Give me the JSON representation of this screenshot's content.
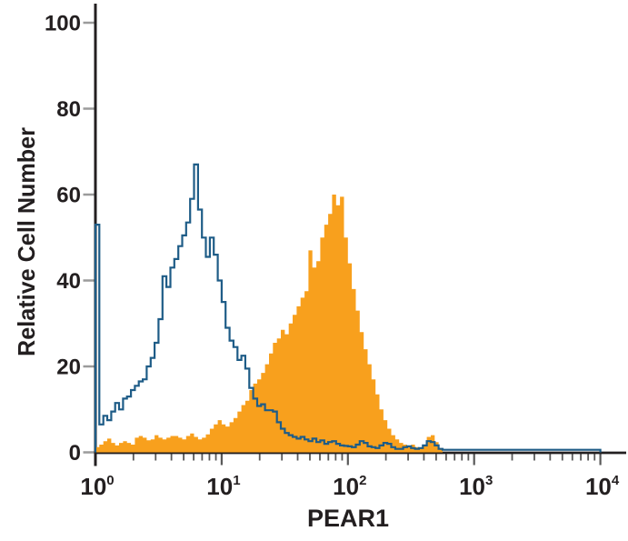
{
  "figure": {
    "kind": "flow-cytometry-overlay-histogram",
    "background_color": "#ffffff"
  },
  "chart_data": {
    "type": "histogram",
    "title": "",
    "xlabel": "PEAR1",
    "ylabel": "Relative Cell Number",
    "x_scale": "log10",
    "x_decade_min": 0,
    "x_decade_max": 4,
    "x_tick_base": "10",
    "x_tick_exponents": [
      "0",
      "1",
      "2",
      "3",
      "4"
    ],
    "x_minor_tick_multipliers": [
      2,
      3,
      4,
      5,
      6,
      7,
      8,
      9
    ],
    "y_ticks": [
      0,
      20,
      40,
      60,
      80,
      100
    ],
    "ylim": [
      0,
      100
    ],
    "grid": false,
    "legend": "none",
    "bins_per_decade": 32,
    "n_bins": 128,
    "colors": {
      "open_line": "#1E5C87",
      "filled_fill": "#F8A01D",
      "axis": "#231F20",
      "y_tick": "#9B9B9B",
      "x_tick": "#595959",
      "text": "#231F20"
    },
    "series": [
      {
        "name": "open-control-histogram",
        "style": "open-outline",
        "color": "#1E5C87",
        "bins": [
          53,
          6.5,
          8.5,
          7.5,
          9.5,
          11.5,
          10,
          12.5,
          13,
          14.5,
          15.5,
          16.5,
          17,
          20,
          22,
          25.5,
          31,
          41,
          38.5,
          43,
          45,
          48,
          50.5,
          53.5,
          59,
          67,
          56.5,
          50,
          45.5,
          50,
          46,
          40,
          35,
          29,
          26,
          24.5,
          21.5,
          22.5,
          19.5,
          15,
          12.5,
          10.8,
          11.2,
          9.8,
          9.8,
          9.5,
          7,
          5.5,
          4.5,
          4,
          3.6,
          3.2,
          3.6,
          3,
          2.6,
          3.2,
          2.4,
          2.8,
          2,
          2.4,
          2.6,
          2,
          1.6,
          1.5,
          1.4,
          1.2,
          1.8,
          2.6,
          2.2,
          1.4,
          1.2,
          1,
          1.6,
          2.2,
          2,
          1.2,
          0.8,
          0.8,
          1.2,
          1.4,
          1,
          0.8,
          1,
          1.6,
          2.6,
          2.4,
          1.6,
          0.8,
          0.6,
          0.6,
          0.6,
          0.6,
          0.6,
          0.6,
          0.6,
          0.6,
          0.6,
          0.6,
          0.6,
          0.6,
          0.6,
          0.6,
          0.6,
          0.6,
          0.6,
          0.6,
          0.6,
          0.6,
          0.6,
          0.6,
          0.6,
          0.6,
          0.6,
          0.6,
          0.6,
          0.6,
          0.6,
          0.6,
          0.6,
          0.6,
          0.6,
          0.6,
          0.6,
          0.6,
          0.6,
          0.6,
          0.6,
          0.6
        ]
      },
      {
        "name": "filled-stained-histogram",
        "style": "filled",
        "color": "#F8A01D",
        "bins": [
          1.2,
          1.8,
          2.6,
          3.2,
          2.2,
          1.6,
          2.2,
          2.6,
          2.2,
          1.8,
          3.4,
          3.8,
          3.4,
          2.8,
          3,
          4,
          3.4,
          3,
          3.4,
          3.8,
          3.8,
          3.4,
          3,
          3.8,
          4.4,
          3.6,
          3,
          3.4,
          4.2,
          5.5,
          6.5,
          7.5,
          6.5,
          6,
          7,
          8,
          9.5,
          11,
          12,
          14.5,
          16,
          17,
          18.5,
          20.5,
          23,
          25.5,
          26.5,
          28.5,
          27.5,
          30,
          32,
          34,
          36,
          37.5,
          47,
          43,
          44.5,
          50,
          53,
          55.5,
          60,
          57.5,
          59.5,
          50,
          44,
          38,
          33,
          28,
          24,
          20.5,
          17,
          13.5,
          10,
          7.5,
          5.5,
          4,
          3,
          2.2,
          1.8,
          1.4,
          1.8,
          1.2,
          1,
          1.4,
          3.6,
          4,
          2.4,
          1,
          0,
          0,
          0,
          0,
          0,
          0,
          0,
          0,
          0,
          0,
          0,
          0,
          0,
          0,
          0,
          0,
          0,
          0,
          0,
          0,
          0,
          0,
          0,
          0,
          0,
          0,
          0,
          0,
          0,
          0,
          0,
          0,
          0,
          0,
          0,
          0,
          0,
          0,
          0,
          0
        ]
      }
    ]
  }
}
